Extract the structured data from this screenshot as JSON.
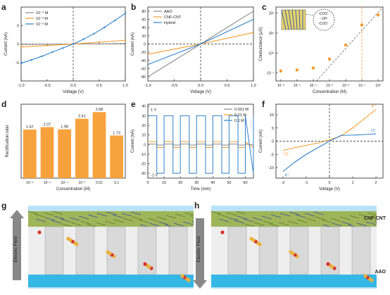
{
  "colors": {
    "black": "#222222",
    "gray": "#8a8a8a",
    "orange": "#f59a2e",
    "blue": "#2f80c8",
    "bar": "#f7a23c",
    "aao_sky": "#b9e3f5",
    "aao_blue": "#35b7e6",
    "pore": "#d9d9d9"
  },
  "chart_data": [
    {
      "panel": "a",
      "type": "line",
      "xlabel": "Voltage (V)",
      "ylabel": "Current (nA)",
      "xlim": [
        -1.0,
        1.0
      ],
      "ylim": [
        -10,
        10
      ],
      "xticks": [
        "-1.0",
        "-0.5",
        "0.0",
        "0.5",
        "1.0"
      ],
      "yticks": [
        "-5",
        "0",
        "5"
      ],
      "legend_position": "top-left",
      "series": [
        {
          "name": "10⁻⁴ M",
          "color": "gray",
          "x": [
            -1,
            -0.5,
            0,
            0.5,
            1
          ],
          "values": [
            -0.1,
            -0.05,
            0,
            0.05,
            0.1
          ]
        },
        {
          "name": "10⁻³ M",
          "color": "orange",
          "x": [
            -1,
            -0.5,
            0,
            0.5,
            1
          ],
          "values": [
            -0.8,
            -0.4,
            0,
            0.5,
            1.0
          ]
        },
        {
          "name": "10⁻² M",
          "color": "blue",
          "x": [
            -1,
            -0.8,
            -0.6,
            -0.4,
            -0.2,
            0,
            0.2,
            0.4,
            0.6,
            0.8,
            1.0
          ],
          "values": [
            -5.2,
            -4.3,
            -3.3,
            -2.2,
            -1.1,
            0,
            1.3,
            2.8,
            4.5,
            6.4,
            8.3
          ]
        }
      ]
    },
    {
      "panel": "b",
      "type": "line",
      "xlabel": "Voltage (V)",
      "ylabel": "Current (nA)",
      "xlim": [
        -1.0,
        1.0
      ],
      "ylim": [
        -90,
        90
      ],
      "xticks": [
        "-1.0",
        "-0.5",
        "0.0",
        "0.5",
        "1.0"
      ],
      "yticks": [
        "-80",
        "-60",
        "-40",
        "-20",
        "0",
        "20",
        "40",
        "60",
        "80"
      ],
      "legend_position": "top-left",
      "series": [
        {
          "name": "AAO",
          "color": "gray",
          "x": [
            -1,
            0,
            1
          ],
          "values": [
            -80,
            0,
            80
          ]
        },
        {
          "name": "CNF-CNT",
          "color": "orange",
          "x": [
            -1,
            0,
            1
          ],
          "values": [
            -25,
            0,
            28
          ]
        },
        {
          "name": "Hybrid",
          "color": "blue",
          "x": [
            -1,
            0,
            1
          ],
          "values": [
            -50,
            0,
            60
          ]
        }
      ]
    },
    {
      "panel": "c",
      "type": "scatter",
      "xlabel": "Concentration (M)",
      "ylabel": "Conductance (μS)",
      "xscale": "log",
      "yscale": "log",
      "xlim": [
        -6.3,
        0.3
      ],
      "ylim": [
        -1.4,
        2.3
      ],
      "xticks": [
        "10⁻⁶",
        "10⁻⁵",
        "10⁻⁴",
        "10⁻³",
        "10⁻²",
        "10⁻¹",
        "10⁰"
      ],
      "yticks": [
        "10⁻¹",
        "10⁰",
        "10¹",
        "10²"
      ],
      "x": [
        -6,
        -5,
        -4,
        -3,
        -2,
        -1,
        0
      ],
      "values": [
        -0.9,
        -0.85,
        -0.75,
        -0.3,
        0.4,
        1.4,
        1.9
      ],
      "inset_labels": [
        "-COO⁻",
        "-OH",
        "-COO⁻"
      ]
    },
    {
      "panel": "d",
      "type": "bar",
      "xlabel": "Concentration (M)",
      "ylabel": "Rectification ratio",
      "ylim": [
        0,
        3
      ],
      "categories": [
        "10⁻⁶",
        "10⁻⁵",
        "10⁻⁴",
        "10⁻³",
        "0.01",
        "0.1"
      ],
      "values": [
        1.97,
        2.07,
        1.98,
        2.41,
        2.68,
        1.73
      ],
      "data_labels": [
        "1.97",
        "2.07",
        "1.98",
        "2.41",
        "2.68",
        "1.73"
      ]
    },
    {
      "panel": "e",
      "type": "line",
      "xlabel": "Time (min)",
      "ylabel": "Current (nA)",
      "xlim": [
        0,
        65
      ],
      "ylim": [
        -35,
        42
      ],
      "xticks": [
        "0",
        "10",
        "20",
        "30",
        "40",
        "50",
        "60"
      ],
      "yticks": [
        "-30",
        "-20",
        "-10",
        "0",
        "10",
        "20",
        "30",
        "40"
      ],
      "legend_position": "top-right",
      "annotations": [
        "1 V",
        "-1 V"
      ],
      "series": [
        {
          "name": "0.001 M",
          "color": "gray",
          "high": 0.5,
          "low": -0.5
        },
        {
          "name": "0.01 M",
          "color": "orange",
          "high": 3,
          "low": -3
        },
        {
          "name": "0.1 M",
          "color": "blue",
          "high": 30,
          "low": -30
        }
      ]
    },
    {
      "panel": "f",
      "type": "line",
      "xlabel": "Voltage (V)",
      "ylabel": "Current (nA)",
      "xlim": [
        -2.3,
        2.3
      ],
      "ylim": [
        -14,
        14
      ],
      "xticks": [
        "-2",
        "-1",
        "0",
        "1",
        "2"
      ],
      "yticks": [
        "-10",
        "-5",
        "0",
        "5",
        "10"
      ],
      "series": [
        {
          "name": "K⁺",
          "color": "orange",
          "label_end": "K⁺",
          "x": [
            -2,
            -1.5,
            -1,
            -0.5,
            0,
            0.5,
            1,
            1.5,
            2
          ],
          "values": [
            -3.5,
            -2.5,
            -1.6,
            -0.7,
            0.5,
            2,
            5,
            8.5,
            12
          ]
        },
        {
          "name": "Cl⁻",
          "color": "blue",
          "label_end": "Cl⁻",
          "x": [
            -2,
            -1.5,
            -1,
            -0.5,
            0,
            0.5,
            1,
            1.5,
            2
          ],
          "values": [
            -11.5,
            -8,
            -5,
            -2.5,
            0,
            2.2,
            2.3,
            2.5,
            2.8
          ]
        }
      ]
    }
  ],
  "panels": {
    "a": "a",
    "b": "b",
    "c": "c",
    "d": "d",
    "e": "e",
    "f": "f",
    "g": "g",
    "h": "h"
  },
  "schematic": {
    "top_label": "CNF-CNT",
    "bottom_label": "AAO",
    "field_label": "Electric Field",
    "ion_labels": [
      "K⁺",
      "Cl⁻"
    ]
  }
}
